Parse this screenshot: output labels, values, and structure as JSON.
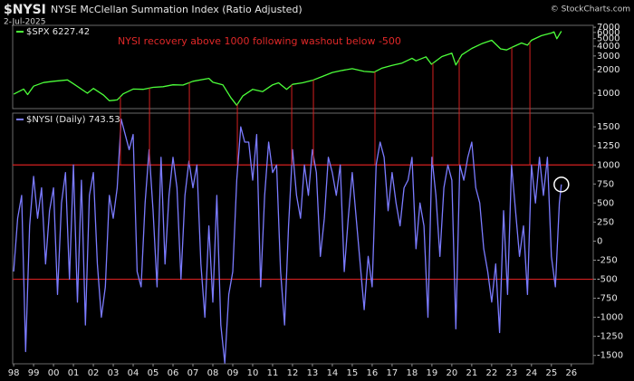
{
  "header": {
    "symbol": "$NYSI",
    "title": "NYSE McClellan Summation Index (Ratio Adjusted)",
    "date": "2-Jul-2025",
    "credit": "© StockCharts.com"
  },
  "chart_data": [
    {
      "type": "line",
      "log": true,
      "grid": false,
      "xlim": [
        1997.95,
        2027.1
      ],
      "ylim": [
        635,
        7400
      ],
      "yticks": [
        1000,
        2000,
        3000,
        4000,
        5000,
        6000,
        7000
      ],
      "series": [
        {
          "name": "$SPX 6227.42",
          "color": "#4cff3a",
          "x": [
            1998.0,
            1998.5,
            1998.7,
            1999.0,
            1999.5,
            2000.0,
            2000.7,
            2001.0,
            2001.7,
            2002.0,
            2002.5,
            2002.8,
            2003.2,
            2003.5,
            2004.0,
            2004.5,
            2005.0,
            2005.5,
            2006.0,
            2006.5,
            2007.0,
            2007.8,
            2008.0,
            2008.5,
            2008.9,
            2009.2,
            2009.5,
            2010.0,
            2010.5,
            2011.0,
            2011.3,
            2011.7,
            2012.0,
            2012.5,
            2013.0,
            2013.5,
            2014.0,
            2014.5,
            2015.0,
            2015.6,
            2016.1,
            2016.5,
            2017.0,
            2017.5,
            2018.0,
            2018.2,
            2018.7,
            2018.98,
            2019.5,
            2020.0,
            2020.2,
            2020.5,
            2021.0,
            2021.5,
            2022.0,
            2022.45,
            2022.75,
            2023.0,
            2023.5,
            2023.8,
            2024.0,
            2024.5,
            2025.0,
            2025.13,
            2025.27,
            2025.5
          ],
          "values": [
            970,
            1130,
            960,
            1230,
            1370,
            1420,
            1480,
            1320,
            1000,
            1150,
            950,
            800,
            820,
            980,
            1130,
            1120,
            1190,
            1210,
            1280,
            1270,
            1420,
            1550,
            1380,
            1280,
            880,
            700,
            920,
            1120,
            1050,
            1280,
            1360,
            1120,
            1300,
            1360,
            1460,
            1640,
            1840,
            1960,
            2060,
            1900,
            1860,
            2100,
            2270,
            2430,
            2800,
            2600,
            2920,
            2350,
            2950,
            3250,
            2300,
            3100,
            3750,
            4300,
            4770,
            3700,
            3580,
            3850,
            4400,
            4120,
            4770,
            5460,
            5900,
            6100,
            4980,
            6227.42
          ]
        }
      ]
    },
    {
      "type": "line",
      "log": false,
      "grid": false,
      "xlim": [
        1997.95,
        2027.1
      ],
      "ylim": [
        -1610,
        1680
      ],
      "yticks": [
        -1500,
        -1250,
        -1000,
        -750,
        -500,
        -250,
        0,
        250,
        500,
        750,
        1000,
        1250,
        1500
      ],
      "xticks": [
        {
          "value": 1998,
          "label": "98"
        },
        {
          "value": 1999,
          "label": "99"
        },
        {
          "value": 2000,
          "label": "00"
        },
        {
          "value": 2001,
          "label": "01"
        },
        {
          "value": 2002,
          "label": "02"
        },
        {
          "value": 2003,
          "label": "03"
        },
        {
          "value": 2004,
          "label": "04"
        },
        {
          "value": 2005,
          "label": "05"
        },
        {
          "value": 2006,
          "label": "06"
        },
        {
          "value": 2007,
          "label": "07"
        },
        {
          "value": 2008,
          "label": "08"
        },
        {
          "value": 2009,
          "label": "09"
        },
        {
          "value": 2010,
          "label": "10"
        },
        {
          "value": 2011,
          "label": "11"
        },
        {
          "value": 2012,
          "label": "12"
        },
        {
          "value": 2013,
          "label": "13"
        },
        {
          "value": 2014,
          "label": "14"
        },
        {
          "value": 2015,
          "label": "15"
        },
        {
          "value": 2016,
          "label": "16"
        },
        {
          "value": 2017,
          "label": "17"
        },
        {
          "value": 2018,
          "label": "18"
        },
        {
          "value": 2019,
          "label": "19"
        },
        {
          "value": 2020,
          "label": "20"
        },
        {
          "value": 2021,
          "label": "21"
        },
        {
          "value": 2022,
          "label": "22"
        },
        {
          "value": 2023,
          "label": "23"
        },
        {
          "value": 2024,
          "label": "24"
        },
        {
          "value": 2025,
          "label": "25"
        },
        {
          "value": 2026,
          "label": "26"
        }
      ],
      "reference_lines": [
        1000,
        -500
      ],
      "reference_color": "#d42020",
      "annotation": "NYSI recovery above 1000 following washout below -500",
      "signal_x": [
        2003.36,
        2004.82,
        2006.82,
        2009.23,
        2011.96,
        2013.05,
        2016.14,
        2019.05,
        2020.37,
        2023.01,
        2023.92
      ],
      "series": [
        {
          "name": "$NYSI (Daily) 743.53",
          "color": "#7b7bff",
          "x": [
            1998.0,
            1998.2,
            1998.4,
            1998.6,
            1998.8,
            1999.0,
            1999.2,
            1999.4,
            1999.6,
            1999.8,
            2000.0,
            2000.2,
            2000.4,
            2000.6,
            2000.8,
            2001.0,
            2001.2,
            2001.4,
            2001.6,
            2001.8,
            2002.0,
            2002.2,
            2002.4,
            2002.6,
            2002.8,
            2003.0,
            2003.2,
            2003.4,
            2003.6,
            2003.8,
            2004.0,
            2004.2,
            2004.4,
            2004.6,
            2004.8,
            2005.0,
            2005.2,
            2005.4,
            2005.6,
            2005.8,
            2006.0,
            2006.2,
            2006.4,
            2006.6,
            2006.8,
            2007.0,
            2007.2,
            2007.4,
            2007.6,
            2007.8,
            2008.0,
            2008.2,
            2008.4,
            2008.6,
            2008.8,
            2009.0,
            2009.2,
            2009.4,
            2009.6,
            2009.8,
            2010.0,
            2010.2,
            2010.4,
            2010.6,
            2010.8,
            2011.0,
            2011.2,
            2011.4,
            2011.6,
            2011.8,
            2012.0,
            2012.2,
            2012.4,
            2012.6,
            2012.8,
            2013.0,
            2013.2,
            2013.4,
            2013.6,
            2013.8,
            2014.0,
            2014.2,
            2014.4,
            2014.6,
            2014.8,
            2015.0,
            2015.2,
            2015.4,
            2015.6,
            2015.8,
            2016.0,
            2016.2,
            2016.4,
            2016.6,
            2016.8,
            2017.0,
            2017.2,
            2017.4,
            2017.6,
            2017.8,
            2018.0,
            2018.2,
            2018.4,
            2018.6,
            2018.8,
            2019.0,
            2019.2,
            2019.4,
            2019.6,
            2019.8,
            2020.0,
            2020.2,
            2020.4,
            2020.6,
            2020.8,
            2021.0,
            2021.2,
            2021.4,
            2021.6,
            2021.8,
            2022.0,
            2022.2,
            2022.4,
            2022.6,
            2022.8,
            2023.0,
            2023.2,
            2023.4,
            2023.6,
            2023.8,
            2024.0,
            2024.2,
            2024.4,
            2024.6,
            2024.8,
            2025.0,
            2025.2,
            2025.4,
            2025.5
          ],
          "values": [
            -400,
            300,
            600,
            -1450,
            200,
            850,
            300,
            700,
            -300,
            400,
            700,
            -700,
            500,
            900,
            -500,
            1000,
            -800,
            800,
            -1100,
            600,
            900,
            -300,
            -1000,
            -600,
            600,
            300,
            700,
            1600,
            1400,
            1200,
            1400,
            -400,
            -600,
            500,
            1200,
            400,
            -600,
            1100,
            -300,
            600,
            1100,
            700,
            -500,
            600,
            1050,
            700,
            1000,
            -300,
            -1000,
            200,
            -800,
            600,
            -1100,
            -1600,
            -700,
            -400,
            800,
            1500,
            1300,
            1300,
            800,
            1400,
            -600,
            600,
            1300,
            900,
            1000,
            -400,
            -1100,
            200,
            1200,
            600,
            300,
            1000,
            600,
            1200,
            900,
            -200,
            300,
            1100,
            900,
            600,
            1000,
            -400,
            300,
            900,
            300,
            -300,
            -900,
            -200,
            -600,
            1000,
            1300,
            1100,
            400,
            900,
            500,
            200,
            700,
            800,
            1100,
            -100,
            500,
            200,
            -1000,
            1100,
            600,
            -200,
            700,
            1000,
            800,
            -1150,
            1000,
            800,
            1100,
            1300,
            700,
            500,
            -100,
            -400,
            -800,
            -300,
            -1200,
            400,
            -700,
            1000,
            400,
            -200,
            200,
            -700,
            1000,
            500,
            1100,
            600,
            1100,
            -200,
            -600,
            500,
            743.53
          ]
        }
      ]
    }
  ]
}
